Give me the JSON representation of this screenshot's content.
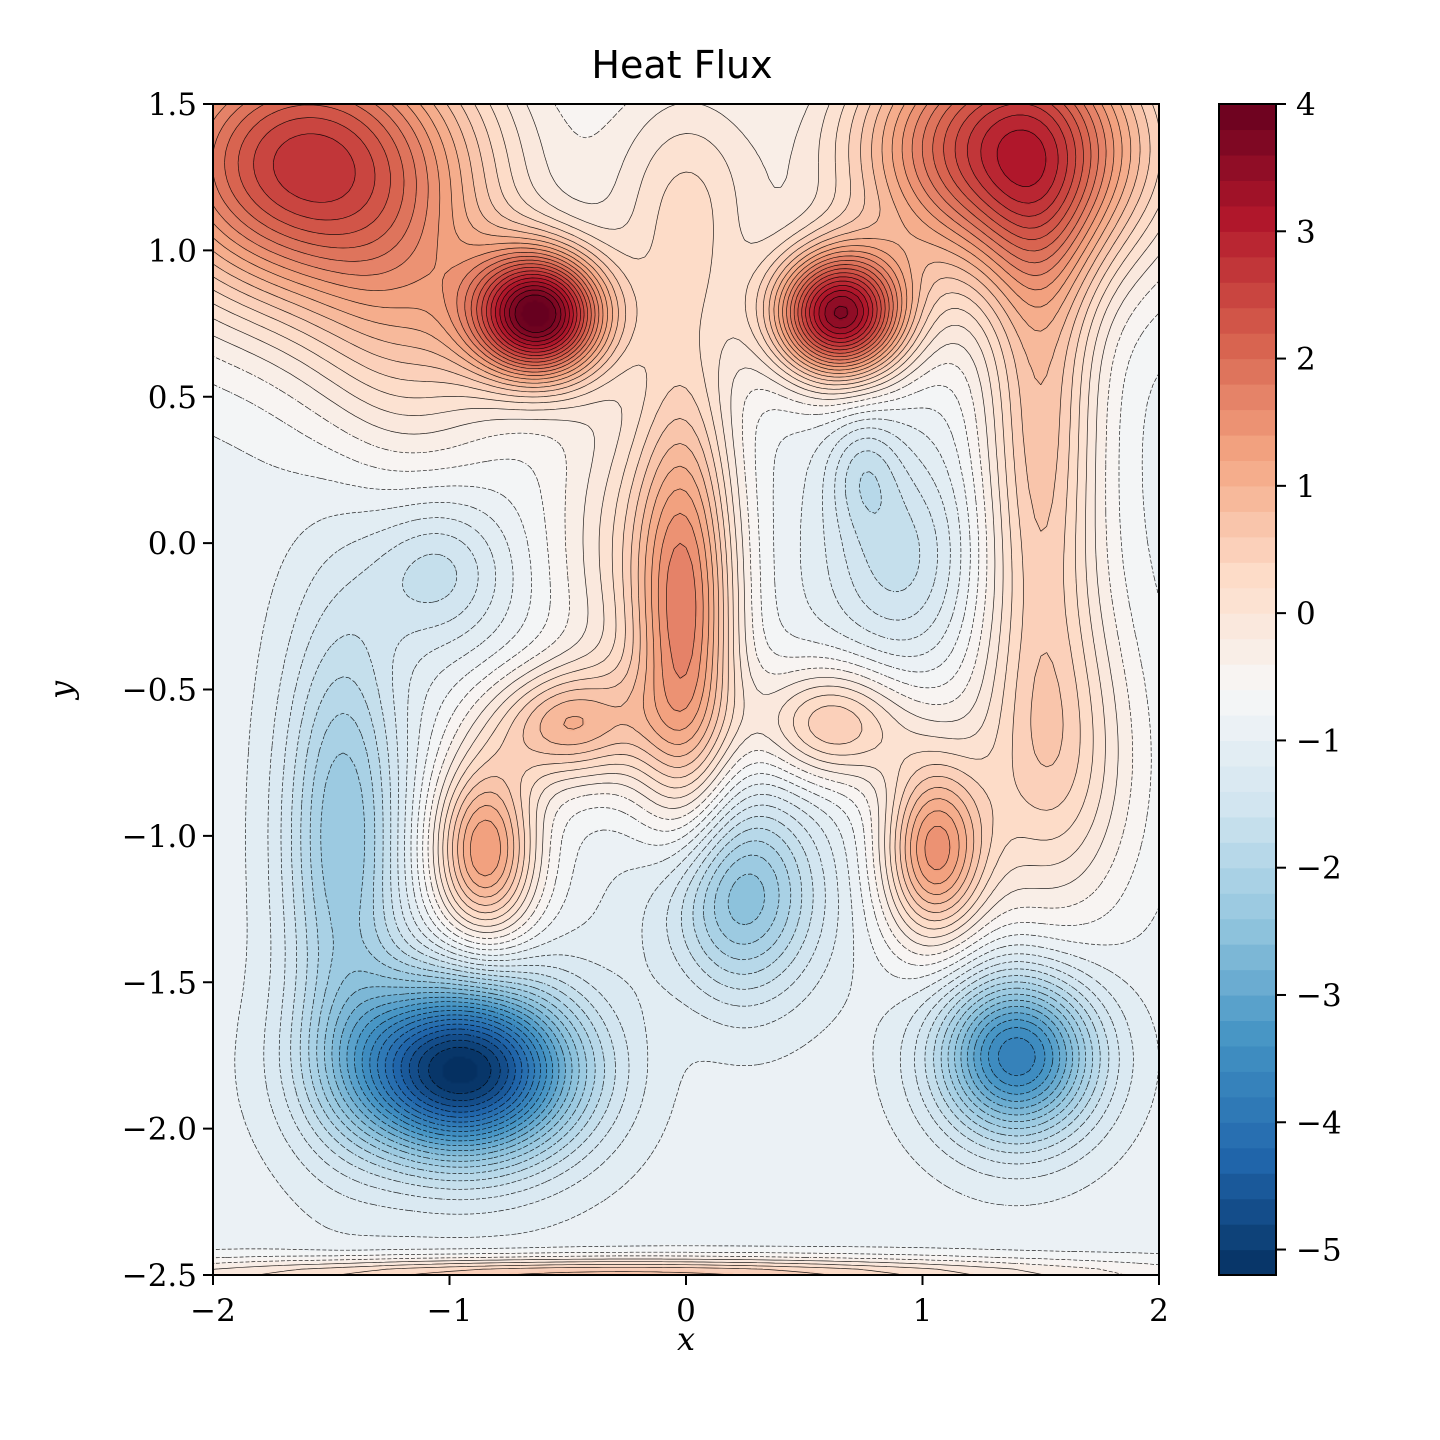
{
  "chart_data": {
    "type": "contour",
    "title": "Heat Flux",
    "xlabel": "x",
    "ylabel": "y",
    "xlim": [
      -2,
      2
    ],
    "ylim": [
      -2.5,
      1.5
    ],
    "xticks": [
      "−2",
      "−1",
      "0",
      "1",
      "2"
    ],
    "yticks": [
      "1.5",
      "1.0",
      "0.5",
      "0.0",
      "−0.5",
      "−1.0",
      "−1.5",
      "−2.0",
      "−2.5"
    ],
    "colorbar": {
      "range": [
        -5.2,
        4.0
      ],
      "ticks": [
        "4",
        "3",
        "2",
        "1",
        "0",
        "−1",
        "−2",
        "−3",
        "−4",
        "−5"
      ],
      "colormap": "RdBu_r"
    },
    "features": [
      {
        "kind": "max",
        "x": -0.65,
        "y": 0.78,
        "value": 3.8
      },
      {
        "kind": "max",
        "x": 0.65,
        "y": 0.78,
        "value": 3.6
      },
      {
        "kind": "max",
        "x": -1.8,
        "y": 1.45,
        "value": 3.0
      },
      {
        "kind": "max",
        "x": 1.15,
        "y": 1.45,
        "value": 3.0
      },
      {
        "kind": "max",
        "x": -0.85,
        "y": -1.05,
        "value": 2.0
      },
      {
        "kind": "max",
        "x": 1.05,
        "y": -1.05,
        "value": 2.0
      },
      {
        "kind": "max",
        "x": -0.5,
        "y": -0.62,
        "value": 2.0
      },
      {
        "kind": "max",
        "x": 0.65,
        "y": -0.62,
        "value": 1.8
      },
      {
        "kind": "max",
        "x": 0.0,
        "y": -0.4,
        "value": 1.6
      },
      {
        "kind": "min",
        "x": -0.9,
        "y": -1.75,
        "value": -5.2
      },
      {
        "kind": "min",
        "x": 1.4,
        "y": -1.75,
        "value": -3.6
      },
      {
        "kind": "min",
        "x": 0.2,
        "y": -1.2,
        "value": -2.6
      },
      {
        "kind": "min",
        "x": -1.05,
        "y": -0.1,
        "value": -1.5
      },
      {
        "kind": "min",
        "x": 0.9,
        "y": -0.05,
        "value": -1.5
      }
    ]
  }
}
